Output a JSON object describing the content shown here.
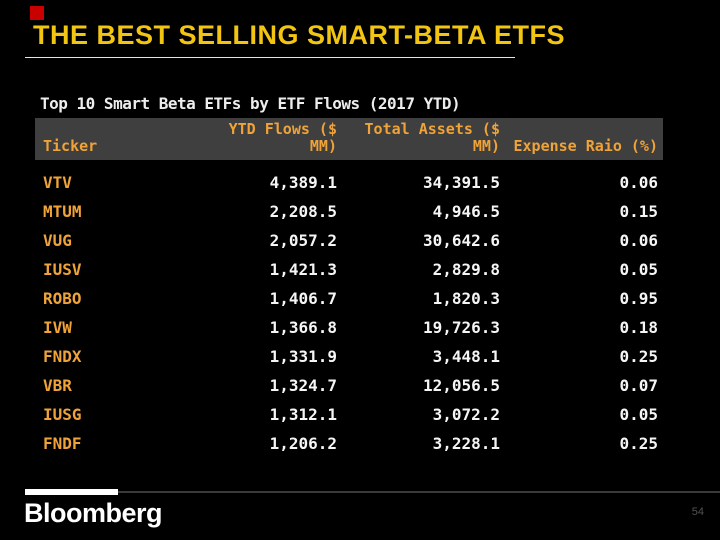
{
  "slide": {
    "title": "THE BEST SELLING SMART-BETA ETFS",
    "page_number": "54",
    "brand": "Bloomberg"
  },
  "colors": {
    "background": "#000000",
    "title_yellow": "#F2C512",
    "amber": "#EFA338",
    "header_bg": "#3F3F3F",
    "value_white": "#F5F5F5",
    "accent_red": "#C80000"
  },
  "chart_data": {
    "type": "table",
    "title": "Top 10 Smart Beta ETFs by ETF Flows (2017 YTD)",
    "columns": [
      "Ticker",
      "YTD Flows ($\nMM)",
      "Total Assets ($\nMM)",
      "Expense Raio (%)"
    ],
    "rows": [
      {
        "ticker": "VTV",
        "ytd_flows": "4,389.1",
        "total_assets": "34,391.5",
        "expense_ratio": "0.06"
      },
      {
        "ticker": "MTUM",
        "ytd_flows": "2,208.5",
        "total_assets": "4,946.5",
        "expense_ratio": "0.15"
      },
      {
        "ticker": "VUG",
        "ytd_flows": "2,057.2",
        "total_assets": "30,642.6",
        "expense_ratio": "0.06"
      },
      {
        "ticker": "IUSV",
        "ytd_flows": "1,421.3",
        "total_assets": "2,829.8",
        "expense_ratio": "0.05"
      },
      {
        "ticker": "ROBO",
        "ytd_flows": "1,406.7",
        "total_assets": "1,820.3",
        "expense_ratio": "0.95"
      },
      {
        "ticker": "IVW",
        "ytd_flows": "1,366.8",
        "total_assets": "19,726.3",
        "expense_ratio": "0.18"
      },
      {
        "ticker": "FNDX",
        "ytd_flows": "1,331.9",
        "total_assets": "3,448.1",
        "expense_ratio": "0.25"
      },
      {
        "ticker": "VBR",
        "ytd_flows": "1,324.7",
        "total_assets": "12,056.5",
        "expense_ratio": "0.07"
      },
      {
        "ticker": "IUSG",
        "ytd_flows": "1,312.1",
        "total_assets": "3,072.2",
        "expense_ratio": "0.05"
      },
      {
        "ticker": "FNDF",
        "ytd_flows": "1,206.2",
        "total_assets": "3,228.1",
        "expense_ratio": "0.25"
      }
    ]
  }
}
